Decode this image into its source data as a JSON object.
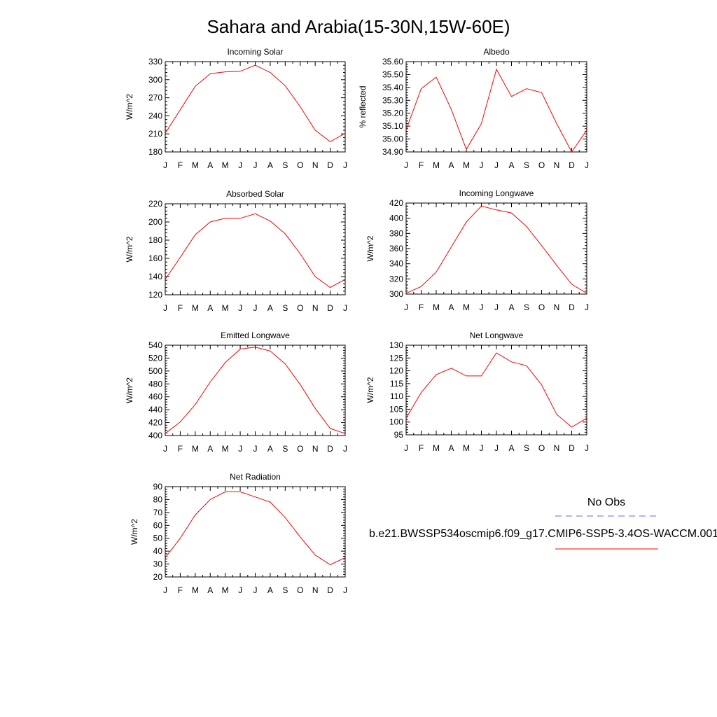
{
  "figure": {
    "title": "Sahara and Arabia(15-30N,15W-60E)"
  },
  "legend": {
    "items": [
      {
        "label": "No Obs",
        "color": "#6666ff",
        "style": "dashed"
      },
      {
        "label": "b.e21.BWSSP534oscmip6.f09_g17.CMIP6-SSP5-3.4OS-WACCM.001",
        "color": "#ff0000",
        "style": "solid"
      }
    ]
  },
  "chart_data": [
    {
      "type": "line",
      "title": "Incoming Solar",
      "ylabel": "W/m^2",
      "categories": [
        "J",
        "F",
        "M",
        "A",
        "M",
        "J",
        "J",
        "A",
        "S",
        "O",
        "N",
        "D",
        "J"
      ],
      "ylim": [
        180,
        330
      ],
      "yticks": [
        180,
        210,
        240,
        270,
        300,
        330
      ],
      "ytick_labels": [
        "180",
        "210",
        "240",
        "270",
        "300",
        "330"
      ],
      "series": [
        {
          "color": "#ff0000",
          "values": [
            211,
            250,
            289,
            310,
            313,
            314,
            324,
            312,
            290,
            255,
            216,
            197,
            211
          ]
        }
      ]
    },
    {
      "type": "line",
      "title": "Albedo",
      "ylabel": "% reflected",
      "categories": [
        "J",
        "F",
        "M",
        "A",
        "M",
        "J",
        "J",
        "A",
        "S",
        "O",
        "N",
        "D",
        "J"
      ],
      "ylim": [
        34.9,
        35.6
      ],
      "yticks": [
        34.9,
        35.0,
        35.1,
        35.2,
        35.3,
        35.4,
        35.5,
        35.6
      ],
      "ytick_labels": [
        "34.90",
        "35.00",
        "35.10",
        "35.20",
        "35.30",
        "35.40",
        "35.50",
        "35.60"
      ],
      "series": [
        {
          "color": "#ff0000",
          "values": [
            35.07,
            35.39,
            35.48,
            35.23,
            34.92,
            35.12,
            35.54,
            35.33,
            35.39,
            35.36,
            35.12,
            34.9,
            35.07
          ]
        }
      ]
    },
    {
      "type": "line",
      "title": "Absorbed Solar",
      "ylabel": "W/m^2",
      "categories": [
        "J",
        "F",
        "M",
        "A",
        "M",
        "J",
        "J",
        "A",
        "S",
        "O",
        "N",
        "D",
        "J"
      ],
      "ylim": [
        120,
        220
      ],
      "yticks": [
        120,
        140,
        160,
        180,
        200,
        220
      ],
      "ytick_labels": [
        "120",
        "140",
        "160",
        "180",
        "200",
        "220"
      ],
      "series": [
        {
          "color": "#ff0000",
          "values": [
            137,
            161,
            186,
            200,
            204,
            204,
            209,
            201,
            187,
            165,
            140,
            128,
            137
          ]
        }
      ]
    },
    {
      "type": "line",
      "title": "Incoming Longwave",
      "ylabel": "W/m^2",
      "categories": [
        "J",
        "F",
        "M",
        "A",
        "M",
        "J",
        "J",
        "A",
        "S",
        "O",
        "N",
        "D",
        "J"
      ],
      "ylim": [
        300,
        420
      ],
      "yticks": [
        300,
        320,
        340,
        360,
        380,
        400,
        420
      ],
      "ytick_labels": [
        "300",
        "320",
        "340",
        "360",
        "380",
        "400",
        "420"
      ],
      "series": [
        {
          "color": "#ff0000",
          "values": [
            301,
            310,
            329,
            362,
            395,
            416,
            411,
            407,
            389,
            364,
            338,
            313,
            301
          ]
        }
      ]
    },
    {
      "type": "line",
      "title": "Emitted Longwave",
      "ylabel": "W/m^2",
      "categories": [
        "J",
        "F",
        "M",
        "A",
        "M",
        "J",
        "J",
        "A",
        "S",
        "O",
        "N",
        "D",
        "J"
      ],
      "ylim": [
        400,
        540
      ],
      "yticks": [
        400,
        420,
        440,
        460,
        480,
        500,
        520,
        540
      ],
      "ytick_labels": [
        "400",
        "420",
        "440",
        "460",
        "480",
        "500",
        "520",
        "540"
      ],
      "series": [
        {
          "color": "#ff0000",
          "values": [
            403,
            421,
            448,
            483,
            513,
            534,
            537,
            531,
            511,
            479,
            442,
            411,
            403
          ]
        }
      ]
    },
    {
      "type": "line",
      "title": "Net Longwave",
      "ylabel": "W/m^2",
      "categories": [
        "J",
        "F",
        "M",
        "A",
        "M",
        "J",
        "J",
        "A",
        "S",
        "O",
        "N",
        "D",
        "J"
      ],
      "ylim": [
        95,
        130
      ],
      "yticks": [
        95,
        100,
        105,
        110,
        115,
        120,
        125,
        130
      ],
      "ytick_labels": [
        "95",
        "100",
        "105",
        "110",
        "115",
        "120",
        "125",
        "130"
      ],
      "series": [
        {
          "color": "#ff0000",
          "values": [
            101.5,
            111.5,
            118.5,
            121,
            118,
            118,
            127,
            123.5,
            122,
            114.5,
            103,
            98,
            101.5
          ]
        }
      ]
    },
    {
      "type": "line",
      "title": "Net Radiation",
      "ylabel": "W/m^2",
      "categories": [
        "J",
        "F",
        "M",
        "A",
        "M",
        "J",
        "J",
        "A",
        "S",
        "O",
        "N",
        "D",
        "J"
      ],
      "ylim": [
        20,
        90
      ],
      "yticks": [
        20,
        30,
        40,
        50,
        60,
        70,
        80,
        90
      ],
      "ytick_labels": [
        "20",
        "30",
        "40",
        "50",
        "60",
        "70",
        "80",
        "90"
      ],
      "series": [
        {
          "color": "#ff0000",
          "values": [
            35,
            50,
            68,
            80,
            86,
            86,
            82,
            78,
            66,
            51,
            37,
            29.5,
            35
          ]
        }
      ]
    }
  ]
}
